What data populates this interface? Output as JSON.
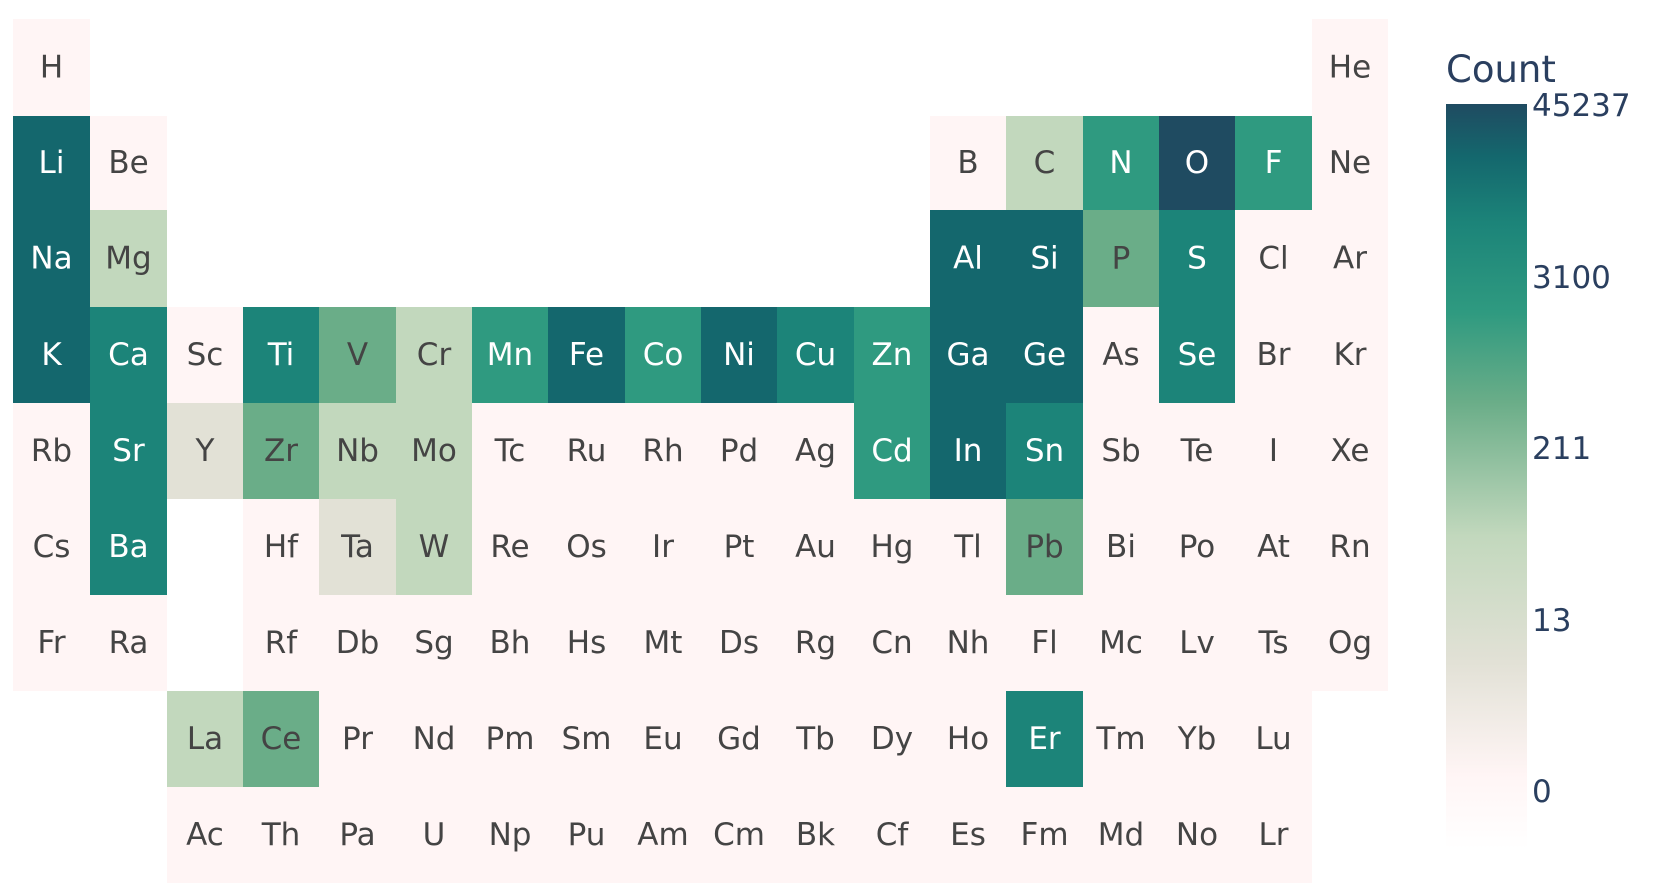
{
  "chart_data": {
    "type": "heatmap",
    "title": "",
    "colorbar": {
      "title": "Count",
      "tick_labels": [
        "0",
        "13",
        "211",
        "3100",
        "45237"
      ],
      "max": 45237
    },
    "colorscale": [
      "#fff5f5",
      "#e2e1d6",
      "#c2d8bd",
      "#6aad88",
      "#2f9a80",
      "#1c8479",
      "#14676d",
      "#1f4b61"
    ],
    "cells": [
      {
        "el": "H",
        "row": 0,
        "col": 0,
        "level": 0
      },
      {
        "el": "He",
        "row": 0,
        "col": 17,
        "level": 0
      },
      {
        "el": "Li",
        "row": 1,
        "col": 0,
        "level": 6
      },
      {
        "el": "Be",
        "row": 1,
        "col": 1,
        "level": 0
      },
      {
        "el": "B",
        "row": 1,
        "col": 12,
        "level": 0
      },
      {
        "el": "C",
        "row": 1,
        "col": 13,
        "level": 2
      },
      {
        "el": "N",
        "row": 1,
        "col": 14,
        "level": 4
      },
      {
        "el": "O",
        "row": 1,
        "col": 15,
        "level": 7
      },
      {
        "el": "F",
        "row": 1,
        "col": 16,
        "level": 4
      },
      {
        "el": "Ne",
        "row": 1,
        "col": 17,
        "level": 0
      },
      {
        "el": "Na",
        "row": 2,
        "col": 0,
        "level": 6
      },
      {
        "el": "Mg",
        "row": 2,
        "col": 1,
        "level": 2
      },
      {
        "el": "Al",
        "row": 2,
        "col": 12,
        "level": 6
      },
      {
        "el": "Si",
        "row": 2,
        "col": 13,
        "level": 6
      },
      {
        "el": "P",
        "row": 2,
        "col": 14,
        "level": 3
      },
      {
        "el": "S",
        "row": 2,
        "col": 15,
        "level": 5
      },
      {
        "el": "Cl",
        "row": 2,
        "col": 16,
        "level": 0
      },
      {
        "el": "Ar",
        "row": 2,
        "col": 17,
        "level": 0
      },
      {
        "el": "K",
        "row": 3,
        "col": 0,
        "level": 6
      },
      {
        "el": "Ca",
        "row": 3,
        "col": 1,
        "level": 5
      },
      {
        "el": "Sc",
        "row": 3,
        "col": 2,
        "level": 0
      },
      {
        "el": "Ti",
        "row": 3,
        "col": 3,
        "level": 5
      },
      {
        "el": "V",
        "row": 3,
        "col": 4,
        "level": 3
      },
      {
        "el": "Cr",
        "row": 3,
        "col": 5,
        "level": 2
      },
      {
        "el": "Mn",
        "row": 3,
        "col": 6,
        "level": 4
      },
      {
        "el": "Fe",
        "row": 3,
        "col": 7,
        "level": 6
      },
      {
        "el": "Co",
        "row": 3,
        "col": 8,
        "level": 4
      },
      {
        "el": "Ni",
        "row": 3,
        "col": 9,
        "level": 6
      },
      {
        "el": "Cu",
        "row": 3,
        "col": 10,
        "level": 5
      },
      {
        "el": "Zn",
        "row": 3,
        "col": 11,
        "level": 4
      },
      {
        "el": "Ga",
        "row": 3,
        "col": 12,
        "level": 6
      },
      {
        "el": "Ge",
        "row": 3,
        "col": 13,
        "level": 6
      },
      {
        "el": "As",
        "row": 3,
        "col": 14,
        "level": 0
      },
      {
        "el": "Se",
        "row": 3,
        "col": 15,
        "level": 5
      },
      {
        "el": "Br",
        "row": 3,
        "col": 16,
        "level": 0
      },
      {
        "el": "Kr",
        "row": 3,
        "col": 17,
        "level": 0
      },
      {
        "el": "Rb",
        "row": 4,
        "col": 0,
        "level": 0
      },
      {
        "el": "Sr",
        "row": 4,
        "col": 1,
        "level": 5
      },
      {
        "el": "Y",
        "row": 4,
        "col": 2,
        "level": 1
      },
      {
        "el": "Zr",
        "row": 4,
        "col": 3,
        "level": 3
      },
      {
        "el": "Nb",
        "row": 4,
        "col": 4,
        "level": 2
      },
      {
        "el": "Mo",
        "row": 4,
        "col": 5,
        "level": 2
      },
      {
        "el": "Tc",
        "row": 4,
        "col": 6,
        "level": 0
      },
      {
        "el": "Ru",
        "row": 4,
        "col": 7,
        "level": 0
      },
      {
        "el": "Rh",
        "row": 4,
        "col": 8,
        "level": 0
      },
      {
        "el": "Pd",
        "row": 4,
        "col": 9,
        "level": 0
      },
      {
        "el": "Ag",
        "row": 4,
        "col": 10,
        "level": 0
      },
      {
        "el": "Cd",
        "row": 4,
        "col": 11,
        "level": 4
      },
      {
        "el": "In",
        "row": 4,
        "col": 12,
        "level": 6
      },
      {
        "el": "Sn",
        "row": 4,
        "col": 13,
        "level": 5
      },
      {
        "el": "Sb",
        "row": 4,
        "col": 14,
        "level": 0
      },
      {
        "el": "Te",
        "row": 4,
        "col": 15,
        "level": 0
      },
      {
        "el": "I",
        "row": 4,
        "col": 16,
        "level": 0
      },
      {
        "el": "Xe",
        "row": 4,
        "col": 17,
        "level": 0
      },
      {
        "el": "Cs",
        "row": 5,
        "col": 0,
        "level": 0
      },
      {
        "el": "Ba",
        "row": 5,
        "col": 1,
        "level": 5
      },
      {
        "el": "Hf",
        "row": 5,
        "col": 3,
        "level": 0
      },
      {
        "el": "Ta",
        "row": 5,
        "col": 4,
        "level": 1
      },
      {
        "el": "W",
        "row": 5,
        "col": 5,
        "level": 2
      },
      {
        "el": "Re",
        "row": 5,
        "col": 6,
        "level": 0
      },
      {
        "el": "Os",
        "row": 5,
        "col": 7,
        "level": 0
      },
      {
        "el": "Ir",
        "row": 5,
        "col": 8,
        "level": 0
      },
      {
        "el": "Pt",
        "row": 5,
        "col": 9,
        "level": 0
      },
      {
        "el": "Au",
        "row": 5,
        "col": 10,
        "level": 0
      },
      {
        "el": "Hg",
        "row": 5,
        "col": 11,
        "level": 0
      },
      {
        "el": "Tl",
        "row": 5,
        "col": 12,
        "level": 0
      },
      {
        "el": "Pb",
        "row": 5,
        "col": 13,
        "level": 3
      },
      {
        "el": "Bi",
        "row": 5,
        "col": 14,
        "level": 0
      },
      {
        "el": "Po",
        "row": 5,
        "col": 15,
        "level": 0
      },
      {
        "el": "At",
        "row": 5,
        "col": 16,
        "level": 0
      },
      {
        "el": "Rn",
        "row": 5,
        "col": 17,
        "level": 0
      },
      {
        "el": "Fr",
        "row": 6,
        "col": 0,
        "level": 0
      },
      {
        "el": "Ra",
        "row": 6,
        "col": 1,
        "level": 0
      },
      {
        "el": "Rf",
        "row": 6,
        "col": 3,
        "level": 0
      },
      {
        "el": "Db",
        "row": 6,
        "col": 4,
        "level": 0
      },
      {
        "el": "Sg",
        "row": 6,
        "col": 5,
        "level": 0
      },
      {
        "el": "Bh",
        "row": 6,
        "col": 6,
        "level": 0
      },
      {
        "el": "Hs",
        "row": 6,
        "col": 7,
        "level": 0
      },
      {
        "el": "Mt",
        "row": 6,
        "col": 8,
        "level": 0
      },
      {
        "el": "Ds",
        "row": 6,
        "col": 9,
        "level": 0
      },
      {
        "el": "Rg",
        "row": 6,
        "col": 10,
        "level": 0
      },
      {
        "el": "Cn",
        "row": 6,
        "col": 11,
        "level": 0
      },
      {
        "el": "Nh",
        "row": 6,
        "col": 12,
        "level": 0
      },
      {
        "el": "Fl",
        "row": 6,
        "col": 13,
        "level": 0
      },
      {
        "el": "Mc",
        "row": 6,
        "col": 14,
        "level": 0
      },
      {
        "el": "Lv",
        "row": 6,
        "col": 15,
        "level": 0
      },
      {
        "el": "Ts",
        "row": 6,
        "col": 16,
        "level": 0
      },
      {
        "el": "Og",
        "row": 6,
        "col": 17,
        "level": 0
      },
      {
        "el": "La",
        "row": 7,
        "col": 2,
        "level": 2
      },
      {
        "el": "Ce",
        "row": 7,
        "col": 3,
        "level": 3
      },
      {
        "el": "Pr",
        "row": 7,
        "col": 4,
        "level": 0
      },
      {
        "el": "Nd",
        "row": 7,
        "col": 5,
        "level": 0
      },
      {
        "el": "Pm",
        "row": 7,
        "col": 6,
        "level": 0
      },
      {
        "el": "Sm",
        "row": 7,
        "col": 7,
        "level": 0
      },
      {
        "el": "Eu",
        "row": 7,
        "col": 8,
        "level": 0
      },
      {
        "el": "Gd",
        "row": 7,
        "col": 9,
        "level": 0
      },
      {
        "el": "Tb",
        "row": 7,
        "col": 10,
        "level": 0
      },
      {
        "el": "Dy",
        "row": 7,
        "col": 11,
        "level": 0
      },
      {
        "el": "Ho",
        "row": 7,
        "col": 12,
        "level": 0
      },
      {
        "el": "Er",
        "row": 7,
        "col": 13,
        "level": 5
      },
      {
        "el": "Tm",
        "row": 7,
        "col": 14,
        "level": 0
      },
      {
        "el": "Yb",
        "row": 7,
        "col": 15,
        "level": 0
      },
      {
        "el": "Lu",
        "row": 7,
        "col": 16,
        "level": 0
      },
      {
        "el": "Ac",
        "row": 8,
        "col": 2,
        "level": 0
      },
      {
        "el": "Th",
        "row": 8,
        "col": 3,
        "level": 0
      },
      {
        "el": "Pa",
        "row": 8,
        "col": 4,
        "level": 0
      },
      {
        "el": "U",
        "row": 8,
        "col": 5,
        "level": 0
      },
      {
        "el": "Np",
        "row": 8,
        "col": 6,
        "level": 0
      },
      {
        "el": "Pu",
        "row": 8,
        "col": 7,
        "level": 0
      },
      {
        "el": "Am",
        "row": 8,
        "col": 8,
        "level": 0
      },
      {
        "el": "Cm",
        "row": 8,
        "col": 9,
        "level": 0
      },
      {
        "el": "Bk",
        "row": 8,
        "col": 10,
        "level": 0
      },
      {
        "el": "Cf",
        "row": 8,
        "col": 11,
        "level": 0
      },
      {
        "el": "Es",
        "row": 8,
        "col": 12,
        "level": 0
      },
      {
        "el": "Fm",
        "row": 8,
        "col": 13,
        "level": 0
      },
      {
        "el": "Md",
        "row": 8,
        "col": 14,
        "level": 0
      },
      {
        "el": "No",
        "row": 8,
        "col": 15,
        "level": 0
      },
      {
        "el": "Lr",
        "row": 8,
        "col": 16,
        "level": 0
      }
    ]
  }
}
